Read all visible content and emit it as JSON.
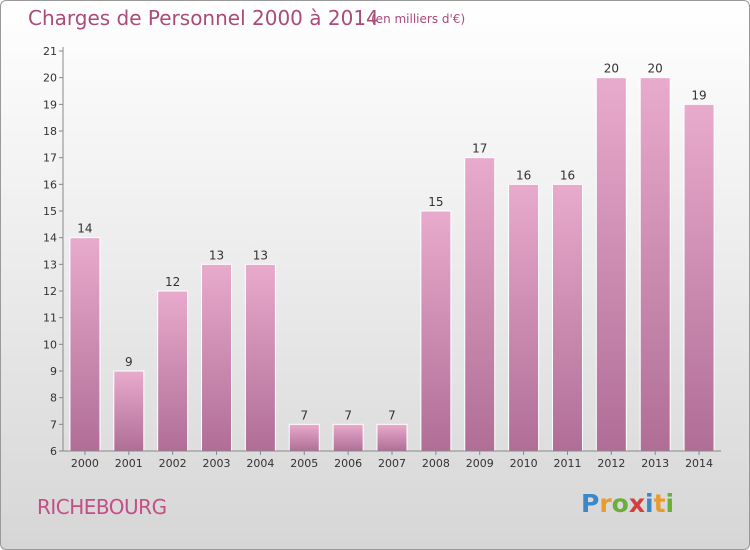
{
  "header": {
    "title": "Charges de Personnel 2000 à 2014",
    "subtitle": "(en milliers d'€)"
  },
  "footer": {
    "commune": "RICHEBOURG",
    "brand": [
      "P",
      "r",
      "o",
      "x",
      "i",
      "t",
      "i"
    ]
  },
  "colors": {
    "title": "#a94c7a",
    "commune": "#c44f86",
    "bar_light": "#e8aacd",
    "bar_dark": "#b06e96",
    "brand_letters": [
      "#3a88c8",
      "#e89c2e",
      "#6cae3a",
      "#d23f3f",
      "#3a88c8",
      "#e89c2e",
      "#6cae3a"
    ]
  },
  "chart_data": {
    "type": "bar",
    "categories": [
      "2000",
      "2001",
      "2002",
      "2003",
      "2004",
      "2005",
      "2006",
      "2007",
      "2008",
      "2009",
      "2010",
      "2011",
      "2012",
      "2013",
      "2014"
    ],
    "values": [
      14,
      9,
      12,
      13,
      13,
      7,
      7,
      7,
      15,
      17,
      16,
      16,
      20,
      20,
      19
    ],
    "ylim": [
      6,
      21
    ],
    "yticks": [
      6,
      7,
      8,
      9,
      10,
      11,
      12,
      13,
      14,
      15,
      16,
      17,
      18,
      19,
      20,
      21
    ],
    "grid": false,
    "data_labels": true
  }
}
